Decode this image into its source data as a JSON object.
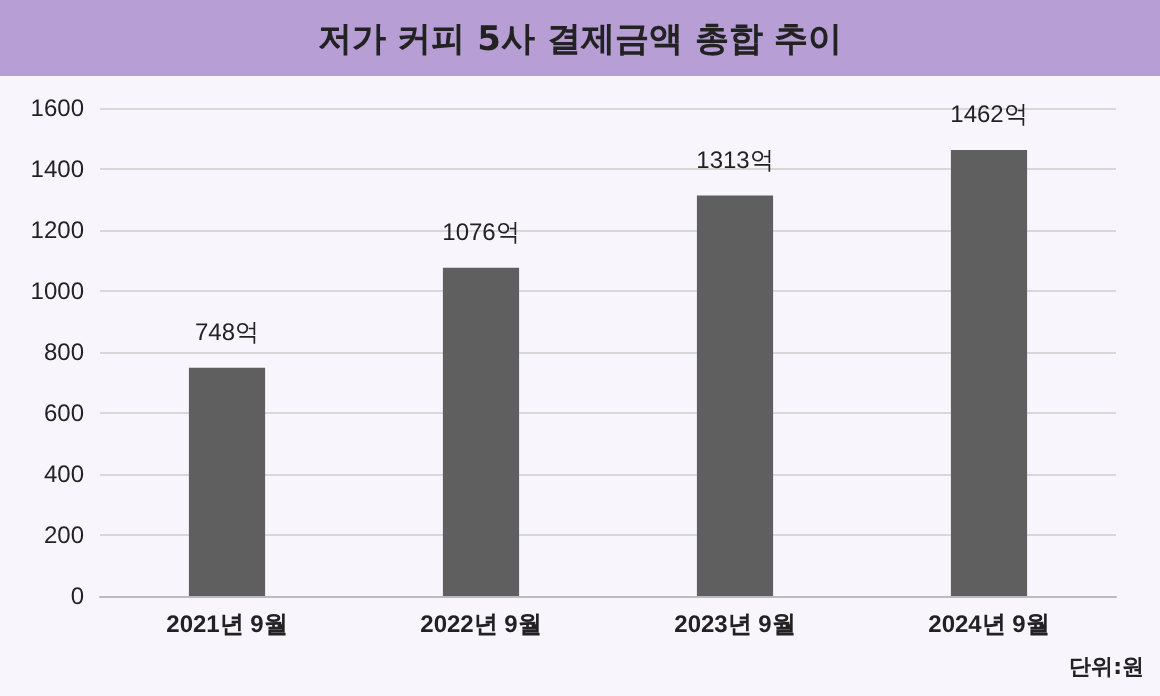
{
  "chart_data": {
    "type": "bar",
    "title": "저가 커피 5사 결제금액 총합 추이",
    "categories": [
      "2021년 9월",
      "2022년 9월",
      "2023년 9월",
      "2024년 9월"
    ],
    "values": [
      748,
      1076,
      1313,
      1462
    ],
    "color": "#5f5f5f",
    "value_labels": [
      "748억",
      "1076억",
      "1313억",
      "1462억"
    ],
    "ylim": [
      0,
      1600
    ],
    "yticks": [
      0,
      200,
      400,
      600,
      800,
      1000,
      1200,
      1400,
      1600
    ],
    "grid": "y",
    "annotations": [
      "단위:원"
    ]
  }
}
